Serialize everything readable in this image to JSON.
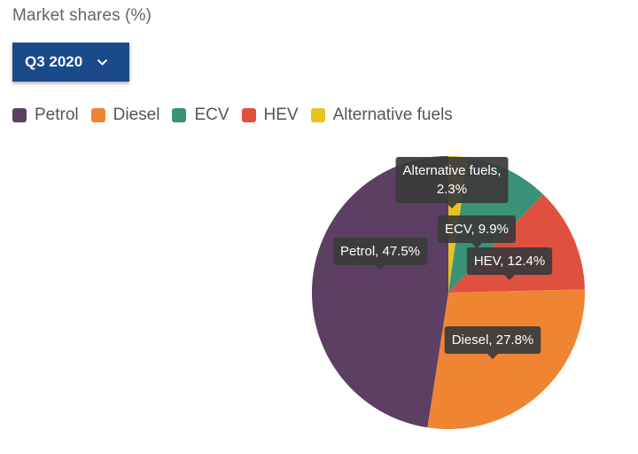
{
  "header": {
    "title": "Market shares (%)"
  },
  "period_select": {
    "selected": "Q3 2020",
    "icon": "chevron-down-icon"
  },
  "chart_data": {
    "type": "pie",
    "title": "Market shares (%)",
    "legend_position": "top-left",
    "slices": [
      {
        "name": "Petrol",
        "value": 47.5,
        "color": "#5c3f63",
        "label": "Petrol, 47.5%"
      },
      {
        "name": "Diesel",
        "value": 27.8,
        "color": "#ef8533",
        "label": "Diesel, 27.8%"
      },
      {
        "name": "ECV",
        "value": 9.9,
        "color": "#3a9279",
        "label": "ECV, 9.9%"
      },
      {
        "name": "HEV",
        "value": 12.4,
        "color": "#e0503f",
        "label": "HEV, 12.4%"
      },
      {
        "name": "Alternative fuels",
        "value": 2.3,
        "color": "#e8c21e",
        "label_lines": [
          "Alternative fuels,",
          "2.3%"
        ]
      }
    ]
  }
}
